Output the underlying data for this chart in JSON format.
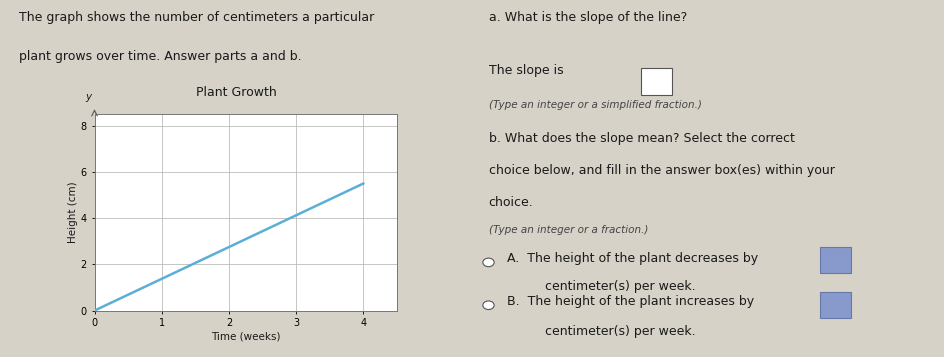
{
  "left_text_line1": "The graph shows the number of centimeters a particular",
  "left_text_line2": "plant grows over time. Answer parts a and b.",
  "chart_title": "Plant Growth",
  "xlabel": "Time (weeks)",
  "ylabel": "Height (cm)",
  "x_ticks": [
    0,
    1,
    2,
    3,
    4
  ],
  "y_ticks": [
    0,
    2,
    4,
    6,
    8
  ],
  "y_tick_labels": [
    "0",
    "2",
    "4",
    "6",
    "8"
  ],
  "x_tick_labels": [
    "0",
    "1",
    "2",
    "3",
    "4"
  ],
  "xlim": [
    0,
    4.5
  ],
  "ylim": [
    0,
    8.5
  ],
  "line_x": [
    0,
    4
  ],
  "line_y": [
    0,
    5.5
  ],
  "line_color": "#5bafd6",
  "line_width": 1.8,
  "grid_color": "#bbbbbb",
  "panel_bg": "#d6d2c8",
  "right_panel_bg": "#d6d2c8",
  "divider_color": "#999999",
  "text_color": "#1a1a1a",
  "subtext_color": "#444444",
  "font_size_body": 9.0,
  "font_size_small": 7.5,
  "font_size_chart_title": 9.0,
  "font_size_ticks": 7.0,
  "q_a_title": "a. What is the slope of the line?",
  "q_a_slope_label": "The slope is",
  "q_a_hint": "(Type an integer or a simplified fraction.)",
  "q_b_title": "b. What does the slope mean? Select the correct",
  "q_b_line1": "choice below, and fill in the answer box(es) within your",
  "q_b_line2": "choice.",
  "q_b_hint": "(Type an integer or a fraction.)",
  "choice_a_text": "A.  The height of the plant decreases by",
  "choice_a_cont": "      centimeter(s) per week.",
  "choice_b_text": "B.  The height of the plant increases by",
  "choice_b_cont": "      centimeter(s) per week.",
  "answer_box_color": "#8899cc",
  "answer_box_edge": "#6677aa"
}
